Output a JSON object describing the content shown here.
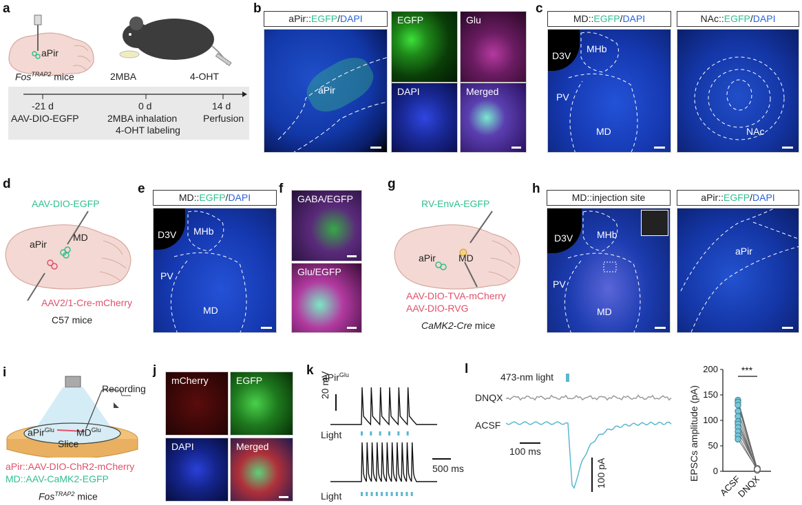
{
  "panels": {
    "a": {
      "label": "a",
      "mouse_line": "Fos",
      "mouse_line_sup": "TRAP2",
      "mouse_suffix": " mice",
      "region": "aPir",
      "odor": "2MBA",
      "drug": "4-OHT",
      "timeline": [
        {
          "time": "-21 d",
          "desc1": "AAV-DIO-EGFP",
          "desc2": ""
        },
        {
          "time": "0 d",
          "desc1": "2MBA inhalation",
          "desc2": "4-OHT labeling"
        },
        {
          "time": "14 d",
          "desc1": "Perfusion",
          "desc2": ""
        }
      ]
    },
    "b": {
      "label": "b",
      "title_pre": "aPir::",
      "title_green": "EGFP",
      "title_sep": "/",
      "title_blue": "DAPI",
      "region": "aPir",
      "channels": [
        "EGFP",
        "Glu",
        "DAPI",
        "Merged"
      ]
    },
    "c": {
      "label": "c",
      "left_title_pre": "MD::",
      "left_title_green": "EGFP",
      "left_title_sep": "/",
      "left_title_blue": "DAPI",
      "right_title_pre": "NAc::",
      "right_title_green": "EGFP",
      "right_title_sep": "/",
      "right_title_blue": "DAPI",
      "regions_left": [
        "D3V",
        "MHb",
        "PV",
        "MD"
      ],
      "region_right": "NAc"
    },
    "d": {
      "label": "d",
      "virus1": "AAV-DIO-EGFP",
      "virus2": "AAV2/1-Cre-mCherry",
      "mice": "C57 mice",
      "region1": "aPir",
      "region2": "MD"
    },
    "e": {
      "label": "e",
      "title_pre": "MD::",
      "title_green": "EGFP",
      "title_sep": "/",
      "title_blue": "DAPI",
      "regions": [
        "D3V",
        "MHb",
        "PV",
        "MD"
      ]
    },
    "f": {
      "label": "f",
      "top": "GABA/EGFP",
      "bottom": "Glu/EGFP"
    },
    "g": {
      "label": "g",
      "virus1": "RV-EnvA-EGFP",
      "virus2": "AAV-DIO-TVA-mCherry",
      "virus3": "AAV-DIO-RVG",
      "mice_italic": "CaMK2-Cre",
      "mice_suffix": " mice",
      "region1": "aPir",
      "region2": "MD"
    },
    "h": {
      "label": "h",
      "left_title": "MD::injection site",
      "right_title_pre": "aPir::",
      "right_title_green": "EGFP",
      "right_title_sep": "/",
      "right_title_blue": "DAPI",
      "regions_left": [
        "D3V",
        "MHb",
        "PV",
        "MD"
      ],
      "region_right": "aPir"
    },
    "i": {
      "label": "i",
      "recording": "Recording",
      "slice": "Slice",
      "left_region": "aPir",
      "left_sup": "Glu",
      "right_region": "MD",
      "right_sup": "Glu",
      "virus1": "aPir::AAV-DIO-ChR2-mCherry",
      "virus2": "MD::AAV-CaMK2-EGFP",
      "mice_line": "Fos",
      "mice_sup": "TRAP2",
      "mice_suffix": " mice"
    },
    "j": {
      "label": "j",
      "channels": [
        "mCherry",
        "EGFP",
        "DAPI",
        "Merged"
      ]
    },
    "k": {
      "label": "k",
      "cell": "aPir",
      "cell_sup": "Glu",
      "vscale": "20 mV",
      "tscale": "500 ms",
      "light1": "Light",
      "light2": "Light"
    },
    "l": {
      "label": "l",
      "light": "473-nm light",
      "trace1": "DNQX",
      "trace2": "ACSF",
      "tscale": "100 ms",
      "iscale": "100 pA",
      "significance": "***"
    }
  },
  "chart_data": {
    "type": "scatter",
    "title": "",
    "xlabel": "",
    "ylabel": "EPSCs amplitude (pA)",
    "categories": [
      "ACSF",
      "DNQX"
    ],
    "ylim": [
      0,
      200
    ],
    "yticks": [
      0,
      50,
      100,
      150,
      200
    ],
    "paired": [
      [
        140,
        5
      ],
      [
        136,
        3
      ],
      [
        130,
        4
      ],
      [
        118,
        6
      ],
      [
        108,
        2
      ],
      [
        98,
        5
      ],
      [
        93,
        3
      ],
      [
        86,
        4
      ],
      [
        78,
        6
      ],
      [
        70,
        2
      ],
      [
        63,
        4
      ]
    ],
    "colors": {
      "ACSF": "#79c6d9",
      "DNQX": "#ffffff"
    }
  }
}
